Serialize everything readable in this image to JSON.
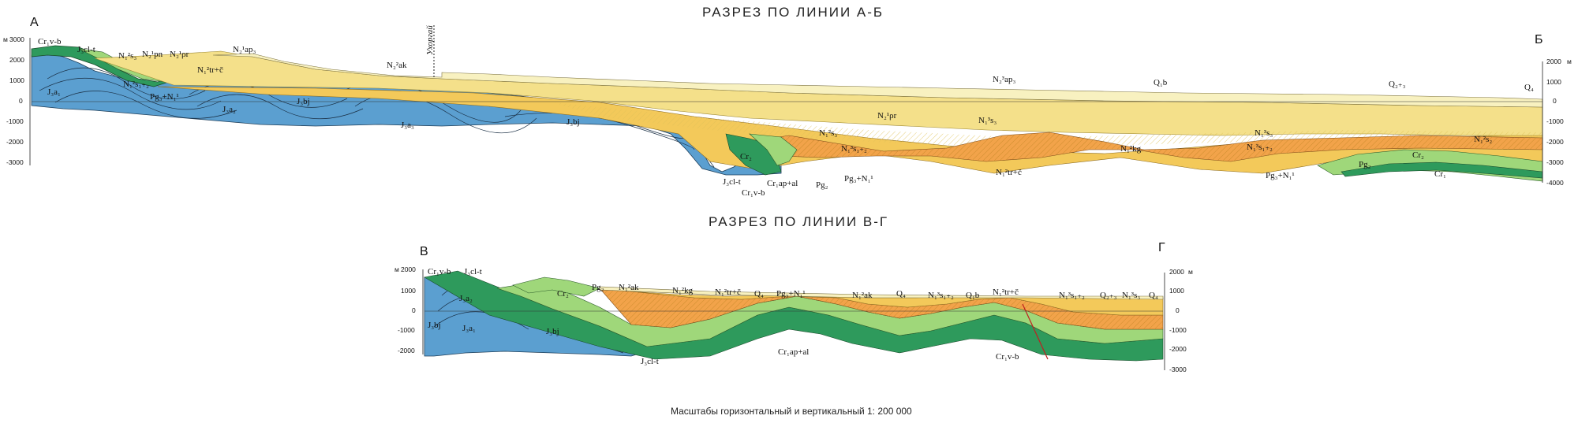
{
  "section_ab": {
    "title": "РАЗРЕЗ ПО ЛИНИИ А-Б",
    "left_end": "А",
    "right_end": "Б",
    "place": "Ухоргай",
    "left_axis": {
      "unit": "м",
      "ticks": [
        "3000",
        "2000",
        "1000",
        "0",
        "-1000",
        "-2000",
        "-3000"
      ]
    },
    "right_axis": {
      "unit": "м",
      "ticks": [
        "2000",
        "1000",
        "0",
        "-1000",
        "-2000",
        "-3000",
        "-4000"
      ]
    },
    "labels": [
      "Cr₁v-b",
      "J₃cl-t",
      "N₁²s₃",
      "N₂¹pn",
      "N₂¹ρr",
      "N₂¹ap₃",
      "N₁²s₁₊₂",
      "N₁²tr+č",
      "Pg₃+N₁¹",
      "J₃a₁",
      "J₃a₂",
      "J₃bj",
      "N₂²ak",
      "J₃a₃",
      "J₃bj",
      "N₂³ap₃",
      "Q₁b",
      "Q₂₊₃",
      "Q₄",
      "N₂¹ρr",
      "N₁³s₃",
      "N₁²s₃",
      "N₁³s₁₊₂",
      "Cr₂",
      "J₃cl-t",
      "Cr₁ap+al",
      "Cr₁v-b",
      "Pg₂",
      "Pg₃+N₁¹",
      "N₁²tr+č",
      "N₁²kg",
      "N₁³s₃",
      "N₁³s₁₊₂",
      "N₁²s₂",
      "Pg₂",
      "Cr₂",
      "Pg₃+N₁¹",
      "Cr₁"
    ]
  },
  "section_vg": {
    "title": "РАЗРЕЗ ПО ЛИНИИ В-Г",
    "left_end": "В",
    "right_end": "Г",
    "left_axis": {
      "unit": "м",
      "ticks": [
        "2000",
        "1000",
        "0",
        "-1000",
        "-2000"
      ]
    },
    "right_axis": {
      "unit": "м",
      "ticks": [
        "2000",
        "1000",
        "0",
        "-1000",
        "-2000",
        "-3000"
      ]
    },
    "labels": [
      "Cr₁v-b",
      "J₃cl-t",
      "J₃a₂",
      "J₃bj",
      "J₃a₁",
      "J₃bj",
      "Cr₂",
      "Pg₂",
      "N₁²ak",
      "N₁²kg",
      "N₁²tr+č",
      "Q₄",
      "Pg₃+N₁¹",
      "N₁²ak",
      "Q₄",
      "N₁³s₁₊₂",
      "Q₁b",
      "N₁²tr+č",
      "N₁³s₁₊₂",
      "Q₂₊₃",
      "N₁³s₃",
      "Q₄",
      "J₃cl-t",
      "Cr₁ap+al",
      "Cr₁v-b"
    ]
  },
  "scale_note": "Масштабы горизонтальный и вертикальный 1: 200 000",
  "colors": {
    "jurassic": "#5b9fd0",
    "cretaceous_dark": "#2e9a5c",
    "cretaceous_light": "#9fd77a",
    "paleogene": "#f2a34a",
    "neogene_lower": "#f3c95a",
    "neogene_upper": "#f4e08a",
    "quaternary": "#f8f1c0"
  }
}
